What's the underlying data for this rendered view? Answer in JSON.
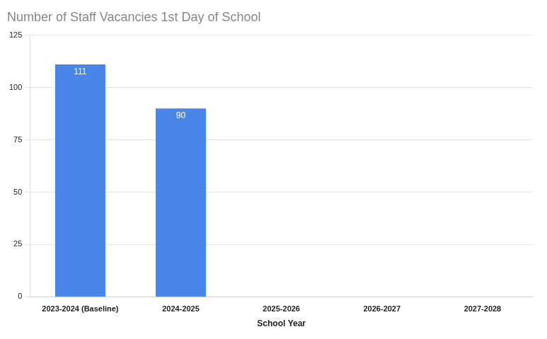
{
  "chart_data": {
    "type": "bar",
    "title": "Number of Staff Vacancies 1st Day of School",
    "xlabel": "School Year",
    "categories": [
      "2023-2024 (Baseline)",
      "2024-2025",
      "2025-2026",
      "2026-2027",
      "2027-2028"
    ],
    "values": [
      111,
      90,
      0,
      0,
      0
    ],
    "color": "#4a86e8",
    "ylim": [
      0,
      125
    ],
    "yticks": [
      0,
      25,
      50,
      75,
      100,
      125
    ],
    "grid": true,
    "data_labels": true
  }
}
